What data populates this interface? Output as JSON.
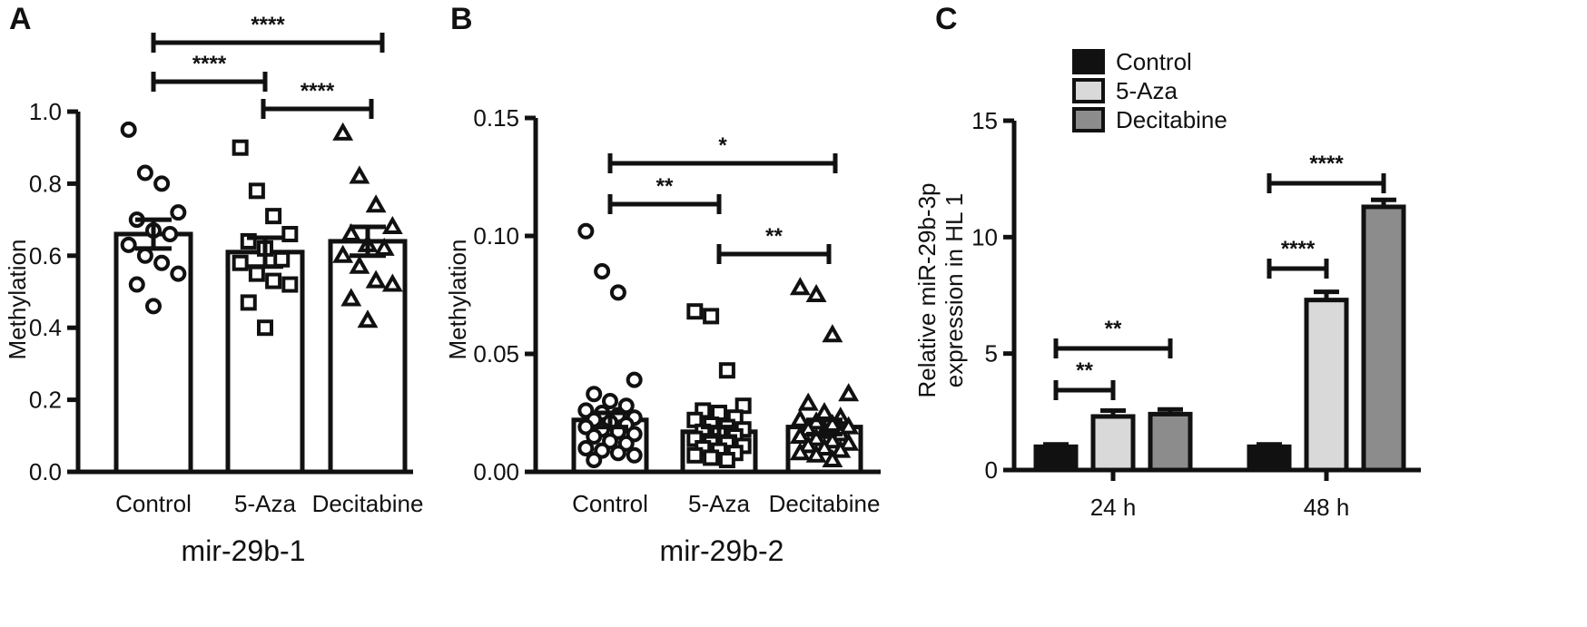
{
  "panels": {
    "A": {
      "letter": "A",
      "subtitle": "mir-29b-1",
      "chart_data": {
        "type": "bar",
        "categories": [
          "Control",
          "5-Aza",
          "Decitabine"
        ],
        "values": [
          0.66,
          0.61,
          0.64
        ],
        "error": [
          0.04,
          0.04,
          0.04
        ],
        "points": [
          [
            0.95,
            0.83,
            0.8,
            0.72,
            0.7,
            0.67,
            0.66,
            0.63,
            0.6,
            0.58,
            0.55,
            0.52,
            0.46
          ],
          [
            0.9,
            0.78,
            0.71,
            0.66,
            0.64,
            0.62,
            0.59,
            0.58,
            0.55,
            0.53,
            0.52,
            0.47,
            0.4
          ],
          [
            0.94,
            0.82,
            0.74,
            0.68,
            0.66,
            0.63,
            0.62,
            0.6,
            0.57,
            0.53,
            0.52,
            0.48,
            0.42
          ]
        ],
        "point_markers": [
          "circle",
          "square",
          "triangle"
        ],
        "ylabel": "Methylation",
        "ylim": [
          0,
          1.0
        ],
        "yticks": [
          "0.0",
          "0.2",
          "0.4",
          "0.6",
          "0.8",
          "1.0"
        ],
        "significance": [
          {
            "from": 0,
            "to": 1,
            "label": "****"
          },
          {
            "from": 1,
            "to": 2,
            "label": "****"
          },
          {
            "from": 0,
            "to": 2,
            "label": "****"
          }
        ]
      }
    },
    "B": {
      "letter": "B",
      "subtitle": "mir-29b-2",
      "chart_data": {
        "type": "bar",
        "categories": [
          "Control",
          "5-Aza",
          "Decitabine"
        ],
        "values": [
          0.022,
          0.017,
          0.019
        ],
        "error": [
          0.003,
          0.002,
          0.003
        ],
        "points": [
          [
            0.102,
            0.085,
            0.076,
            0.039,
            0.033,
            0.03,
            0.028,
            0.026,
            0.025,
            0.024,
            0.023,
            0.022,
            0.021,
            0.02,
            0.019,
            0.018,
            0.017,
            0.016,
            0.015,
            0.013,
            0.012,
            0.01,
            0.009,
            0.008,
            0.007,
            0.005
          ],
          [
            0.068,
            0.066,
            0.043,
            0.028,
            0.026,
            0.025,
            0.023,
            0.022,
            0.02,
            0.019,
            0.018,
            0.017,
            0.016,
            0.015,
            0.014,
            0.013,
            0.012,
            0.011,
            0.01,
            0.009,
            0.008,
            0.007,
            0.006,
            0.005
          ],
          [
            0.078,
            0.075,
            0.058,
            0.033,
            0.029,
            0.025,
            0.023,
            0.022,
            0.021,
            0.02,
            0.019,
            0.018,
            0.017,
            0.016,
            0.015,
            0.014,
            0.013,
            0.012,
            0.011,
            0.01,
            0.009,
            0.008,
            0.007,
            0.005
          ]
        ],
        "point_markers": [
          "circle",
          "square",
          "triangle"
        ],
        "ylabel": "Methylation",
        "ylim": [
          0,
          0.15
        ],
        "yticks": [
          "0.00",
          "0.05",
          "0.10",
          "0.15"
        ],
        "significance": [
          {
            "from": 0,
            "to": 1,
            "label": "**"
          },
          {
            "from": 1,
            "to": 2,
            "label": "**"
          },
          {
            "from": 0,
            "to": 2,
            "label": "*"
          }
        ]
      }
    },
    "C": {
      "letter": "C",
      "chart_data": {
        "type": "bar",
        "categories": [
          "24 h",
          "48 h"
        ],
        "series": [
          {
            "name": "Control",
            "values": [
              1.0,
              1.0
            ],
            "error": [
              0.1,
              0.1
            ],
            "color": "#111111"
          },
          {
            "name": "5-Aza",
            "values": [
              2.3,
              7.3
            ],
            "error": [
              0.25,
              0.35
            ],
            "color": "#d9d9d9"
          },
          {
            "name": "Decitabine",
            "values": [
              2.4,
              11.3
            ],
            "error": [
              0.2,
              0.3
            ],
            "color": "#8c8c8c"
          }
        ],
        "ylabel_line1": "Relative miR-29b-3p",
        "ylabel_line2": "expression in HL 1",
        "ylim": [
          0,
          15
        ],
        "yticks": [
          "0",
          "5",
          "10",
          "15"
        ],
        "legend_position": "top-left",
        "significance": [
          {
            "group": 0,
            "from": 0,
            "to": 1,
            "label": "**"
          },
          {
            "group": 0,
            "from": 0,
            "to": 2,
            "label": "**"
          },
          {
            "group": 1,
            "from": 0,
            "to": 1,
            "label": "****"
          },
          {
            "group": 1,
            "from": 0,
            "to": 2,
            "label": "****"
          }
        ]
      }
    }
  }
}
